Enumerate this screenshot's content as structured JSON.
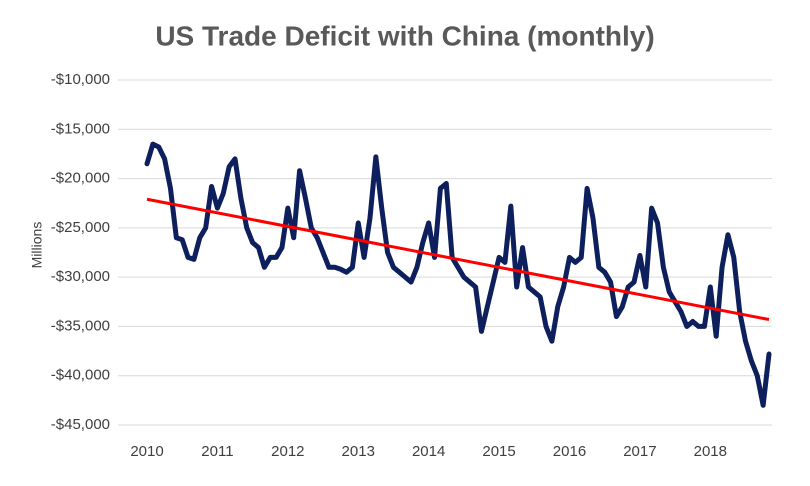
{
  "chart_data": {
    "type": "line",
    "title": "US Trade Deficit with China (monthly)",
    "y_label": "Millions",
    "categories": [
      "2010",
      null,
      null,
      null,
      null,
      null,
      null,
      null,
      null,
      null,
      null,
      null,
      "2011",
      null,
      null,
      null,
      null,
      null,
      null,
      null,
      null,
      null,
      null,
      null,
      "2012",
      null,
      null,
      null,
      null,
      null,
      null,
      null,
      null,
      null,
      null,
      null,
      "2013",
      null,
      null,
      null,
      null,
      null,
      null,
      null,
      null,
      null,
      null,
      null,
      "2014",
      null,
      null,
      null,
      null,
      null,
      null,
      null,
      null,
      null,
      null,
      null,
      "2015",
      null,
      null,
      null,
      null,
      null,
      null,
      null,
      null,
      null,
      null,
      null,
      "2016",
      null,
      null,
      null,
      null,
      null,
      null,
      null,
      null,
      null,
      null,
      null,
      "2017",
      null,
      null,
      null,
      null,
      null,
      null,
      null,
      null,
      null,
      null,
      null,
      "2018",
      null,
      null,
      null,
      null,
      null,
      null,
      null,
      null,
      null,
      null
    ],
    "series": [
      {
        "color": "#0d1f5c",
        "values": [
          -18500,
          -16500,
          -16800,
          -18000,
          -21000,
          -26000,
          -26200,
          -28000,
          -28200,
          -26000,
          -25000,
          -20800,
          -23000,
          -21500,
          -18800,
          -18000,
          -22000,
          -25000,
          -26500,
          -27000,
          -29000,
          -28000,
          -28000,
          -27000,
          -23000,
          -26000,
          -19200,
          -22000,
          -25000,
          -26000,
          -27500,
          -29000,
          -29000,
          -29200,
          -29500,
          -29000,
          -24500,
          -28000,
          -24000,
          -17800,
          -23000,
          -27500,
          -29000,
          -29500,
          -30000,
          -30500,
          -29000,
          -26500,
          -24500,
          -28000,
          -21000,
          -20500,
          -28000,
          -29000,
          -30000,
          -30500,
          -31000,
          -35500,
          -33000,
          -30500,
          -28000,
          -28500,
          -22800,
          -31000,
          -27000,
          -31000,
          -31500,
          -32000,
          -35000,
          -36500,
          -33000,
          -31000,
          -28000,
          -28500,
          -28000,
          -21000,
          -24000,
          -29000,
          -29500,
          -30500,
          -34000,
          -33000,
          -31000,
          -30500,
          -27800,
          -31000,
          -23000,
          -24500,
          -29000,
          -31500,
          -32500,
          -33500,
          -35000,
          -34500,
          -35000,
          -35000,
          -31000,
          -36000,
          -29000,
          -25700,
          -28000,
          -33500,
          -36500,
          -38500,
          -40000,
          -43000,
          -37800
        ]
      }
    ],
    "trendline": {
      "color": "#ff0000",
      "values": [
        -22100,
        -34300
      ]
    },
    "ylim": [
      -45000,
      -10000
    ],
    "yticks": [
      {
        "value": -10000,
        "label": "-$10,000"
      },
      {
        "value": -15000,
        "label": "-$15,000"
      },
      {
        "value": -20000,
        "label": "-$20,000"
      },
      {
        "value": -25000,
        "label": "-$25,000"
      },
      {
        "value": -30000,
        "label": "-$30,000"
      },
      {
        "value": -35000,
        "label": "-$35,000"
      },
      {
        "value": -40000,
        "label": "-$40,000"
      },
      {
        "value": -45000,
        "label": "-$45,000"
      }
    ],
    "grid": true
  }
}
